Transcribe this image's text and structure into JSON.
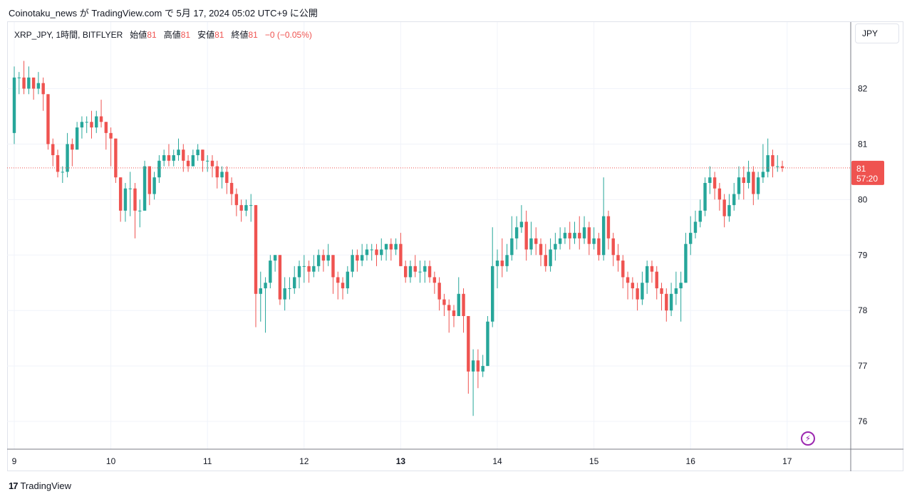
{
  "header": {
    "publish_line": "Coinotaku_news が TradingView.com で 5月 17, 2024 05:02 UTC+9 に公開"
  },
  "legend": {
    "symbol": "XRP_JPY, 1時間, BITFLYER",
    "open_label": "始値",
    "open_value": "81",
    "high_label": "高値",
    "high_value": "81",
    "low_label": "安値",
    "low_value": "81",
    "close_label": "終値",
    "close_value": "81",
    "change": "−0 (−0.05%)"
  },
  "currency_button": "JPY",
  "footer": {
    "brand": "TradingView",
    "logo_mark": "17"
  },
  "colors": {
    "up": "#26a69a",
    "down": "#ef5350",
    "grid": "#f0f3fa",
    "axis_text": "#131722",
    "price_line": "#ef5350"
  },
  "lightning_icon": "lightning-bolt-icon",
  "chart_data": {
    "type": "candlestick",
    "symbol": "XRP_JPY",
    "interval": "1時間",
    "exchange": "BITFLYER",
    "ylim": [
      75.5,
      83.2
    ],
    "y_ticks": [
      "76",
      "77",
      "78",
      "79",
      "80",
      "81",
      "82"
    ],
    "x_ticks": [
      {
        "label": "9",
        "index": 0,
        "bold": false
      },
      {
        "label": "10",
        "index": 20,
        "bold": false
      },
      {
        "label": "11",
        "index": 40,
        "bold": false
      },
      {
        "label": "12",
        "index": 60,
        "bold": false
      },
      {
        "label": "13",
        "index": 80,
        "bold": true
      },
      {
        "label": "14",
        "index": 100,
        "bold": false
      },
      {
        "label": "15",
        "index": 120,
        "bold": false
      },
      {
        "label": "16",
        "index": 140,
        "bold": false
      },
      {
        "label": "17",
        "index": 160,
        "bold": false
      }
    ],
    "last_price": {
      "label": "81",
      "countdown": "57:20",
      "value": 80.57
    },
    "candles": [
      [
        81.2,
        82.2,
        82.4,
        81.0
      ],
      [
        82.2,
        82.2,
        82.3,
        81.9
      ],
      [
        82.2,
        82.0,
        82.5,
        81.9
      ],
      [
        82.0,
        82.2,
        82.4,
        81.9
      ],
      [
        82.2,
        82.0,
        82.2,
        81.8
      ],
      [
        82.0,
        82.1,
        82.3,
        81.9
      ],
      [
        82.1,
        81.9,
        82.2,
        81.6
      ],
      [
        81.9,
        81.0,
        81.9,
        80.9
      ],
      [
        81.0,
        80.8,
        81.1,
        80.6
      ],
      [
        80.8,
        80.5,
        80.9,
        80.4
      ],
      [
        80.5,
        80.5,
        80.6,
        80.3
      ],
      [
        80.5,
        81.0,
        81.2,
        80.4
      ],
      [
        81.0,
        80.9,
        81.1,
        80.6
      ],
      [
        80.9,
        81.3,
        81.4,
        81.0
      ],
      [
        81.3,
        81.4,
        81.5,
        81.1
      ],
      [
        81.4,
        81.4,
        81.5,
        81.2
      ],
      [
        81.4,
        81.3,
        81.6,
        81.1
      ],
      [
        81.3,
        81.5,
        81.6,
        81.2
      ],
      [
        81.5,
        81.4,
        81.8,
        81.3
      ],
      [
        81.4,
        81.2,
        81.4,
        80.9
      ],
      [
        81.2,
        81.1,
        81.3,
        80.6
      ],
      [
        81.1,
        80.4,
        81.1,
        80.3
      ],
      [
        80.4,
        79.8,
        80.4,
        79.6
      ],
      [
        79.8,
        80.2,
        80.3,
        79.6
      ],
      [
        80.2,
        80.2,
        80.5,
        79.7
      ],
      [
        80.2,
        79.8,
        80.3,
        79.3
      ],
      [
        79.8,
        79.8,
        80.0,
        79.5
      ],
      [
        79.8,
        80.6,
        80.7,
        79.8
      ],
      [
        80.6,
        80.1,
        80.6,
        79.9
      ],
      [
        80.1,
        80.4,
        80.5,
        80.0
      ],
      [
        80.4,
        80.7,
        80.8,
        80.3
      ],
      [
        80.7,
        80.8,
        80.9,
        80.6
      ],
      [
        80.8,
        80.7,
        81.0,
        80.6
      ],
      [
        80.7,
        80.8,
        80.9,
        80.6
      ],
      [
        80.8,
        80.9,
        81.1,
        80.7
      ],
      [
        80.9,
        80.7,
        81.0,
        80.5
      ],
      [
        80.7,
        80.6,
        80.8,
        80.5
      ],
      [
        80.6,
        80.8,
        80.9,
        80.6
      ],
      [
        80.8,
        80.9,
        81.0,
        80.7
      ],
      [
        80.9,
        80.7,
        80.9,
        80.5
      ],
      [
        80.7,
        80.7,
        80.8,
        80.5
      ],
      [
        80.7,
        80.6,
        80.8,
        80.4
      ],
      [
        80.6,
        80.4,
        80.7,
        80.2
      ],
      [
        80.4,
        80.5,
        80.6,
        80.2
      ],
      [
        80.5,
        80.3,
        80.6,
        80.1
      ],
      [
        80.3,
        80.1,
        80.4,
        79.9
      ],
      [
        80.1,
        79.9,
        80.2,
        79.7
      ],
      [
        79.9,
        79.8,
        80.0,
        79.6
      ],
      [
        79.8,
        79.9,
        80.0,
        79.7
      ],
      [
        79.9,
        79.9,
        80.1,
        79.6
      ],
      [
        79.9,
        78.3,
        79.9,
        77.7
      ],
      [
        78.3,
        78.4,
        78.7,
        77.8
      ],
      [
        78.4,
        78.5,
        78.6,
        77.6
      ],
      [
        78.5,
        78.9,
        79.0,
        78.4
      ],
      [
        78.9,
        79.0,
        79.0,
        78.7
      ],
      [
        79.0,
        78.2,
        79.0,
        78.1
      ],
      [
        78.2,
        78.4,
        78.6,
        78.0
      ],
      [
        78.4,
        78.4,
        78.6,
        78.2
      ],
      [
        78.4,
        78.6,
        78.8,
        78.3
      ],
      [
        78.6,
        78.8,
        78.9,
        78.4
      ],
      [
        78.8,
        78.8,
        79.0,
        78.5
      ],
      [
        78.8,
        78.7,
        78.9,
        78.5
      ],
      [
        78.7,
        78.8,
        79.0,
        78.6
      ],
      [
        78.8,
        79.0,
        79.1,
        78.7
      ],
      [
        79.0,
        78.9,
        79.1,
        78.7
      ],
      [
        78.9,
        79.0,
        79.2,
        78.8
      ],
      [
        79.0,
        78.6,
        79.0,
        78.3
      ],
      [
        78.6,
        78.5,
        78.7,
        78.2
      ],
      [
        78.5,
        78.4,
        78.6,
        78.2
      ],
      [
        78.4,
        78.7,
        78.8,
        78.3
      ],
      [
        78.7,
        79.0,
        79.1,
        78.6
      ],
      [
        79.0,
        78.9,
        79.1,
        78.7
      ],
      [
        78.9,
        79.0,
        79.2,
        78.8
      ],
      [
        79.0,
        79.1,
        79.2,
        78.9
      ],
      [
        79.1,
        79.1,
        79.2,
        78.9
      ],
      [
        79.1,
        79.0,
        79.2,
        78.8
      ],
      [
        79.0,
        79.1,
        79.3,
        78.9
      ],
      [
        79.1,
        79.2,
        79.2,
        78.9
      ],
      [
        79.2,
        79.1,
        79.3,
        78.9
      ],
      [
        79.1,
        79.2,
        79.3,
        79.0
      ],
      [
        79.2,
        78.8,
        79.4,
        78.8
      ],
      [
        78.8,
        78.6,
        78.9,
        78.5
      ],
      [
        78.6,
        78.8,
        78.9,
        78.5
      ],
      [
        78.8,
        78.7,
        79.0,
        78.6
      ],
      [
        78.7,
        78.7,
        78.9,
        78.5
      ],
      [
        78.7,
        78.8,
        78.9,
        78.5
      ],
      [
        78.8,
        78.6,
        78.9,
        78.5
      ],
      [
        78.6,
        78.5,
        78.7,
        78.3
      ],
      [
        78.5,
        78.2,
        78.6,
        78.0
      ],
      [
        78.2,
        78.1,
        78.3,
        77.9
      ],
      [
        78.1,
        78.0,
        78.2,
        77.6
      ],
      [
        78.0,
        77.9,
        78.1,
        77.7
      ],
      [
        77.9,
        78.3,
        78.6,
        77.9
      ],
      [
        78.3,
        77.9,
        78.4,
        77.6
      ],
      [
        77.9,
        76.9,
        77.9,
        76.5
      ],
      [
        76.9,
        77.1,
        77.3,
        76.1
      ],
      [
        77.1,
        76.9,
        77.3,
        76.6
      ],
      [
        76.9,
        77.0,
        77.2,
        76.8
      ],
      [
        77.0,
        77.8,
        77.9,
        77.0
      ],
      [
        77.8,
        78.8,
        79.5,
        77.7
      ],
      [
        78.8,
        78.9,
        79.1,
        78.4
      ],
      [
        78.9,
        78.8,
        79.3,
        78.6
      ],
      [
        78.8,
        79.0,
        79.2,
        78.7
      ],
      [
        79.0,
        79.3,
        79.7,
        78.9
      ],
      [
        79.3,
        79.5,
        79.7,
        79.1
      ],
      [
        79.5,
        79.6,
        79.9,
        79.4
      ],
      [
        79.6,
        79.1,
        79.8,
        78.9
      ],
      [
        79.1,
        79.3,
        79.6,
        79.0
      ],
      [
        79.3,
        79.2,
        79.5,
        79.0
      ],
      [
        79.2,
        79.0,
        79.3,
        78.8
      ],
      [
        79.0,
        78.8,
        79.2,
        78.7
      ],
      [
        78.8,
        79.1,
        79.3,
        78.7
      ],
      [
        79.1,
        79.2,
        79.4,
        78.9
      ],
      [
        79.2,
        79.3,
        79.5,
        79.1
      ],
      [
        79.3,
        79.4,
        79.5,
        79.2
      ],
      [
        79.4,
        79.3,
        79.6,
        79.1
      ],
      [
        79.3,
        79.4,
        79.6,
        79.2
      ],
      [
        79.4,
        79.3,
        79.7,
        79.1
      ],
      [
        79.3,
        79.5,
        79.7,
        79.2
      ],
      [
        79.5,
        79.2,
        79.6,
        79.0
      ],
      [
        79.2,
        79.3,
        79.5,
        79.1
      ],
      [
        79.3,
        79.0,
        79.4,
        78.9
      ],
      [
        79.0,
        79.7,
        80.4,
        78.9
      ],
      [
        79.7,
        79.3,
        79.8,
        79.1
      ],
      [
        79.3,
        79.0,
        79.4,
        78.8
      ],
      [
        79.0,
        78.9,
        79.2,
        78.7
      ],
      [
        78.9,
        78.6,
        79.0,
        78.4
      ],
      [
        78.6,
        78.5,
        78.7,
        78.2
      ],
      [
        78.5,
        78.4,
        78.6,
        78.2
      ],
      [
        78.4,
        78.2,
        78.5,
        78.0
      ],
      [
        78.2,
        78.5,
        78.7,
        78.1
      ],
      [
        78.5,
        78.8,
        78.9,
        78.3
      ],
      [
        78.8,
        78.7,
        78.9,
        78.5
      ],
      [
        78.7,
        78.4,
        78.8,
        78.2
      ],
      [
        78.4,
        78.3,
        78.5,
        78.0
      ],
      [
        78.3,
        78.0,
        78.4,
        77.8
      ],
      [
        78.0,
        78.3,
        78.5,
        77.9
      ],
      [
        78.3,
        78.4,
        78.7,
        78.1
      ],
      [
        78.4,
        78.5,
        78.7,
        77.8
      ],
      [
        78.5,
        79.2,
        79.4,
        78.5
      ],
      [
        79.2,
        79.4,
        79.7,
        79.0
      ],
      [
        79.4,
        79.6,
        79.8,
        79.3
      ],
      [
        79.6,
        79.8,
        80.0,
        79.5
      ],
      [
        79.8,
        80.3,
        80.4,
        79.7
      ],
      [
        80.3,
        80.4,
        80.6,
        80.1
      ],
      [
        80.4,
        80.2,
        80.5,
        80.0
      ],
      [
        80.2,
        80.0,
        80.3,
        79.8
      ],
      [
        80.0,
        79.7,
        80.1,
        79.5
      ],
      [
        79.7,
        79.9,
        80.1,
        79.6
      ],
      [
        79.9,
        80.1,
        80.3,
        79.8
      ],
      [
        80.1,
        80.4,
        80.6,
        80.0
      ],
      [
        80.4,
        80.3,
        80.6,
        80.0
      ],
      [
        80.3,
        80.5,
        80.7,
        80.2
      ],
      [
        80.5,
        80.1,
        80.6,
        79.9
      ],
      [
        80.1,
        80.4,
        80.5,
        80.0
      ],
      [
        80.4,
        80.5,
        81.0,
        80.3
      ],
      [
        80.5,
        80.8,
        81.1,
        80.4
      ],
      [
        80.8,
        80.6,
        80.9,
        80.4
      ],
      [
        80.6,
        80.6,
        80.8,
        80.5
      ],
      [
        80.6,
        80.57,
        80.7,
        80.5
      ]
    ]
  }
}
